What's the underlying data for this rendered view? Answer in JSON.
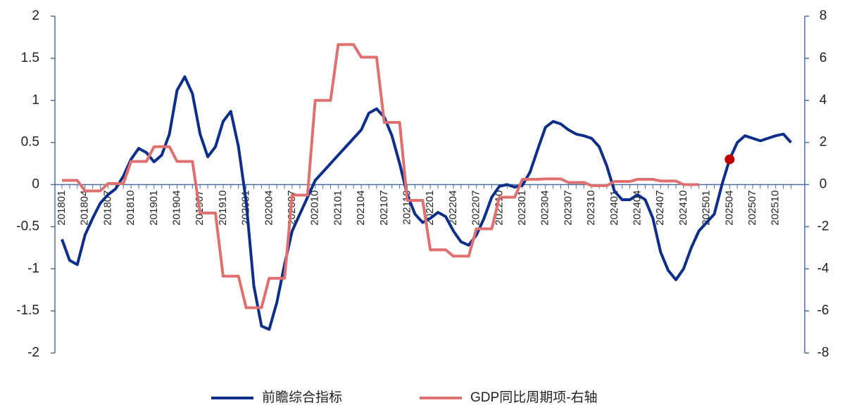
{
  "chart_data": {
    "type": "line",
    "categories": [
      "201801",
      null,
      null,
      "201804",
      null,
      null,
      "201807",
      null,
      null,
      "201810",
      null,
      null,
      "201901",
      null,
      null,
      "201904",
      null,
      null,
      "201907",
      null,
      null,
      "201910",
      null,
      null,
      "202001",
      null,
      null,
      "202004",
      null,
      null,
      "202007",
      null,
      null,
      "202010",
      null,
      null,
      "202101",
      null,
      null,
      "202104",
      null,
      null,
      "202107",
      null,
      null,
      "202110",
      null,
      null,
      "202201",
      null,
      null,
      "202204",
      null,
      null,
      "202207",
      null,
      null,
      "202210",
      null,
      null,
      "202301",
      null,
      null,
      "202304",
      null,
      null,
      "202307",
      null,
      null,
      "202310",
      null,
      null,
      "202401",
      null,
      null,
      "202404",
      null,
      null,
      "202407",
      null,
      null,
      "202410",
      null,
      null,
      "202501",
      null,
      null,
      "202504",
      null,
      null,
      "202507",
      null,
      null,
      "202510",
      null,
      null
    ],
    "series": [
      {
        "name": "前瞻综合指标",
        "color": "#0d2e8a",
        "axis": "y",
        "values": [
          -0.65,
          -0.9,
          -0.95,
          -0.6,
          -0.4,
          -0.22,
          -0.12,
          -0.05,
          0.1,
          0.3,
          0.43,
          0.38,
          0.27,
          0.35,
          0.6,
          1.12,
          1.28,
          1.08,
          0.6,
          0.33,
          0.45,
          0.75,
          0.87,
          0.45,
          -0.2,
          -1.2,
          -1.68,
          -1.72,
          -1.4,
          -0.95,
          -0.55,
          -0.35,
          -0.15,
          0.05,
          0.15,
          0.25,
          0.35,
          0.45,
          0.55,
          0.65,
          0.85,
          0.9,
          0.8,
          0.58,
          0.25,
          -0.12,
          -0.35,
          -0.45,
          -0.4,
          -0.33,
          -0.38,
          -0.55,
          -0.68,
          -0.72,
          -0.6,
          -0.4,
          -0.15,
          -0.02,
          0,
          -0.03,
          -0.01,
          0.15,
          0.42,
          0.68,
          0.75,
          0.72,
          0.65,
          0.6,
          0.58,
          0.55,
          0.45,
          0.22,
          -0.08,
          -0.18,
          -0.18,
          -0.12,
          -0.18,
          -0.4,
          -0.8,
          -1.02,
          -1.13,
          -1.0,
          -0.75,
          -0.55,
          -0.45,
          -0.35,
          0.0,
          0.3,
          0.5,
          0.58,
          0.55,
          0.52,
          0.55,
          0.58,
          0.6,
          0.5
        ]
      },
      {
        "name": "GDP同比周期项-右轴",
        "color": "#e07070",
        "axis": "y2",
        "values": [
          0.2,
          0.2,
          0.2,
          -0.3,
          -0.3,
          -0.3,
          0.05,
          0.05,
          0.05,
          1.1,
          1.1,
          1.1,
          1.8,
          1.8,
          1.8,
          1.1,
          1.1,
          1.1,
          -1.35,
          -1.35,
          -1.35,
          -4.35,
          -4.35,
          -4.35,
          -5.85,
          -5.85,
          -5.85,
          -4.45,
          -4.45,
          -4.45,
          -0.5,
          -0.5,
          -0.5,
          4.0,
          4.0,
          4.0,
          6.65,
          6.65,
          6.65,
          6.05,
          6.05,
          6.05,
          2.95,
          2.95,
          2.95,
          -0.75,
          -0.75,
          -0.75,
          -3.1,
          -3.1,
          -3.1,
          -3.4,
          -3.4,
          -3.4,
          -2.1,
          -2.1,
          -2.1,
          -0.6,
          -0.6,
          -0.6,
          0.25,
          0.25,
          0.25,
          0.27,
          0.27,
          0.27,
          0.1,
          0.1,
          0.1,
          -0.05,
          -0.05,
          -0.05,
          0.15,
          0.15,
          0.15,
          0.25,
          0.25,
          0.25,
          0.17,
          0.17,
          0.17,
          0,
          0,
          0,
          null,
          null,
          null,
          null,
          null,
          null,
          null,
          null,
          null,
          null,
          null,
          null
        ]
      }
    ],
    "marker": {
      "category": "202504",
      "color": "#c00000"
    },
    "ylim": [
      -2,
      2
    ],
    "yticks": [
      -2,
      -1.5,
      -1,
      -0.5,
      0,
      0.5,
      1,
      1.5,
      2
    ],
    "y2lim": [
      -8,
      8
    ],
    "y2ticks": [
      -8,
      -6,
      -4,
      -2,
      0,
      2,
      4,
      6,
      8
    ],
    "legend": "bottom"
  }
}
